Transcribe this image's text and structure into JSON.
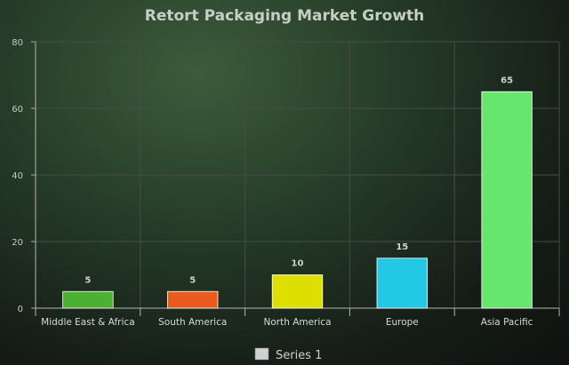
{
  "chart_data": {
    "type": "bar",
    "title": "Retort Packaging Market Growth",
    "categories": [
      "Middle East & Africa",
      "South America",
      "North America",
      "Europe",
      "Asia Pacific"
    ],
    "series": [
      {
        "name": "Series 1",
        "values": [
          5,
          5,
          10,
          15,
          65
        ]
      }
    ],
    "bar_colors": [
      "#4cb033",
      "#e85a1e",
      "#dede00",
      "#22c8e4",
      "#66e66e"
    ],
    "legend_color": "#d0d0d0",
    "ylim": [
      0,
      80
    ],
    "yticks": [
      0,
      20,
      40,
      60,
      80
    ],
    "grid": true,
    "legend_position": "bottom"
  }
}
